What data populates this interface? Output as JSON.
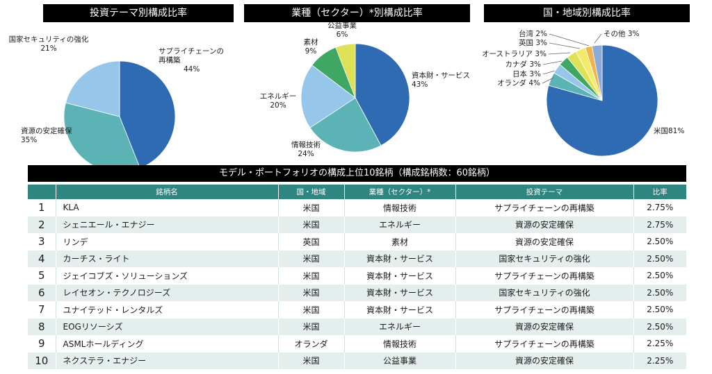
{
  "chart_data": [
    {
      "type": "pie",
      "title": "投資テーマ別構成比率",
      "categories": [
        "サプライチェーンの再構築",
        "資源の安定確保",
        "国家セキュリティの強化"
      ],
      "values": [
        44,
        35,
        21
      ],
      "unit": "%",
      "colors": [
        "#2e6bb3",
        "#5bb3b5",
        "#96c6e9"
      ],
      "labels": [
        {
          "lines": [
            "サプライチェーンの",
            "再構築",
            "44%"
          ]
        },
        {
          "lines": [
            "資源の安定確保",
            "35%"
          ]
        },
        {
          "lines": [
            "国家セキュリティの強化",
            "21%"
          ]
        }
      ]
    },
    {
      "type": "pie",
      "title": "業種（セクター）*別構成比率",
      "categories": [
        "資本財・サービス",
        "情報技術",
        "エネルギー",
        "素材",
        "公益事業"
      ],
      "values": [
        43,
        24,
        20,
        9,
        6
      ],
      "unit": "%",
      "colors": [
        "#2e6bb3",
        "#5bb3b5",
        "#96c6e9",
        "#3fa663",
        "#dde155"
      ],
      "labels": [
        {
          "lines": [
            "資本財・サービス",
            "43%"
          ]
        },
        {
          "lines": [
            "情報技術",
            "24%"
          ]
        },
        {
          "lines": [
            "エネルギー",
            "20%"
          ]
        },
        {
          "lines": [
            "素材",
            "9%"
          ]
        },
        {
          "lines": [
            "公益事業",
            "6%"
          ]
        }
      ]
    },
    {
      "type": "pie",
      "title": "国・地域別構成比率",
      "categories": [
        "米国",
        "オランダ",
        "日本",
        "カナダ",
        "オーストラリア",
        "英国",
        "台湾",
        "その他"
      ],
      "values": [
        81,
        4,
        3,
        3,
        3,
        3,
        2,
        3
      ],
      "unit": "%",
      "colors": [
        "#2e6bb3",
        "#5bb3b5",
        "#96c6e9",
        "#3fa663",
        "#dde155",
        "#f3ea6c",
        "#f0b44d",
        "#8ea9d6"
      ],
      "labels": [
        {
          "lines": [
            "米国81%"
          ]
        },
        {
          "lines": [
            "オランダ 4%"
          ]
        },
        {
          "lines": [
            "日本 3%"
          ]
        },
        {
          "lines": [
            "カナダ 3%"
          ]
        },
        {
          "lines": [
            "オーストラリア 3%"
          ]
        },
        {
          "lines": [
            "英国 3%"
          ]
        },
        {
          "lines": [
            "台湾 2%"
          ]
        },
        {
          "lines": [
            "その他 3%"
          ]
        }
      ]
    }
  ],
  "table": {
    "title": "モデル・ポートフォリオの構成上位10銘柄（構成銘柄数：60銘柄）",
    "headers": [
      "",
      "銘柄名",
      "国・地域",
      "業種（セクター）*",
      "投資テーマ",
      "比率"
    ],
    "rows": [
      [
        "1",
        "KLA",
        "米国",
        "情報技術",
        "サプライチェーンの再構築",
        "2.75%"
      ],
      [
        "2",
        "シェニエール・エナジー",
        "米国",
        "エネルギー",
        "資源の安定確保",
        "2.75%"
      ],
      [
        "3",
        "リンデ",
        "英国",
        "素材",
        "資源の安定確保",
        "2.50%"
      ],
      [
        "4",
        "カーチス・ライト",
        "米国",
        "資本財・サービス",
        "国家セキュリティの強化",
        "2.50%"
      ],
      [
        "5",
        "ジェイコブズ・ソリューションズ",
        "米国",
        "資本財・サービス",
        "サプライチェーンの再構築",
        "2.50%"
      ],
      [
        "6",
        "レイセオン・テクノロジーズ",
        "米国",
        "資本財・サービス",
        "国家セキュリティの強化",
        "2.50%"
      ],
      [
        "7",
        "ユナイテッド・レンタルズ",
        "米国",
        "資本財・サービス",
        "サプライチェーンの再構築",
        "2.50%"
      ],
      [
        "8",
        "EOGリソーシズ",
        "米国",
        "エネルギー",
        "資源の安定確保",
        "2.50%"
      ],
      [
        "9",
        "ASMLホールディング",
        "オランダ",
        "情報技術",
        "サプライチェーンの再構築",
        "2.25%"
      ],
      [
        "10",
        "ネクステラ・エナジー",
        "米国",
        "公益事業",
        "資源の安定確保",
        "2.25%"
      ]
    ]
  }
}
